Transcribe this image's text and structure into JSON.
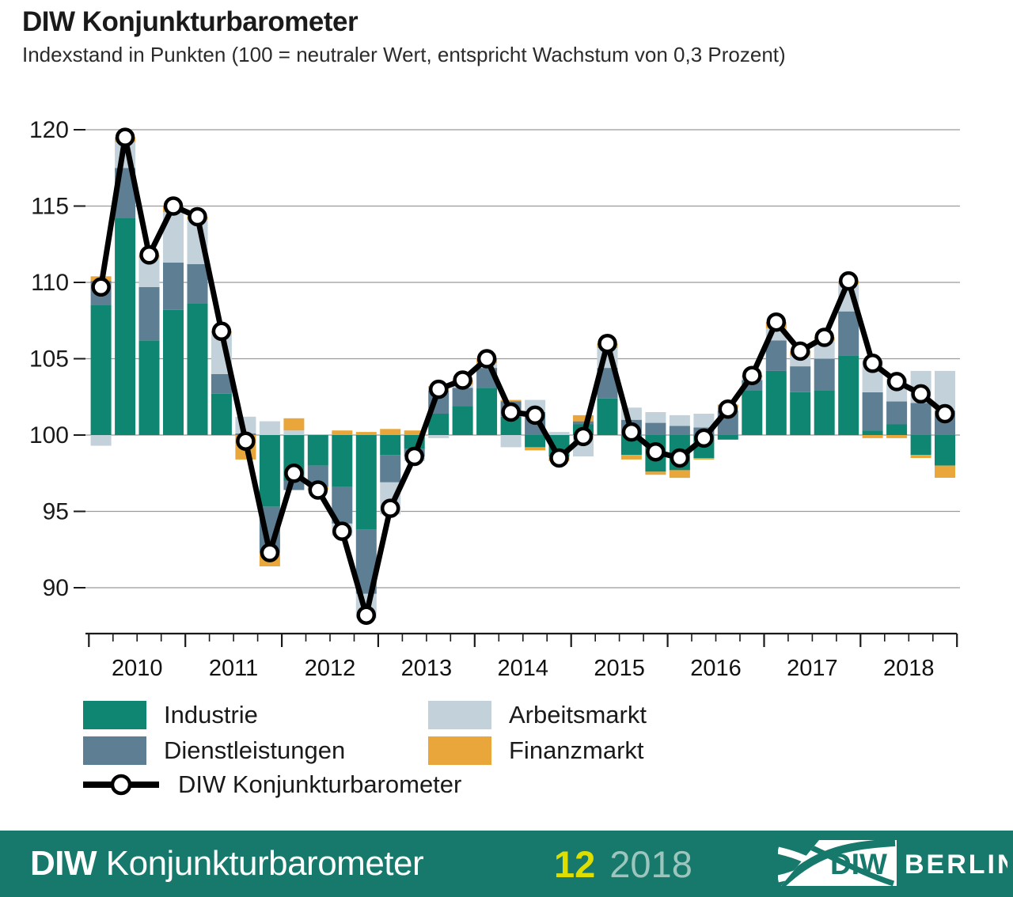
{
  "chart_data": {
    "type": "bar",
    "subtype": "diverging-stacked-bar-with-line",
    "title": "DIW Konjunkturbarometer",
    "subtitle": "Indexstand in Punkten (100 = neutraler Wert, entspricht Wachstum von 0,3 Prozent)",
    "baseline": 100,
    "ylim": [
      87,
      121
    ],
    "yticks": [
      90,
      95,
      100,
      105,
      110,
      115,
      120
    ],
    "grid": "horizontal",
    "legend_position": "bottom-left",
    "years": [
      "2010",
      "2011",
      "2012",
      "2013",
      "2014",
      "2015",
      "2016",
      "2017",
      "2018"
    ],
    "categories": [
      "2010 Q1",
      "2010 Q2",
      "2010 Q3",
      "2010 Q4",
      "2011 Q1",
      "2011 Q2",
      "2011 Q3",
      "2011 Q4",
      "2012 Q1",
      "2012 Q2",
      "2012 Q3",
      "2012 Q4",
      "2013 Q1",
      "2013 Q2",
      "2013 Q3",
      "2013 Q4",
      "2014 Q1",
      "2014 Q2",
      "2014 Q3",
      "2014 Q4",
      "2015 Q1",
      "2015 Q2",
      "2015 Q3",
      "2015 Q4",
      "2016 Q1",
      "2016 Q2",
      "2016 Q3",
      "2016 Q4",
      "2017 Q1",
      "2017 Q2",
      "2017 Q3",
      "2017 Q4",
      "2018 Q1",
      "2018 Q2",
      "2018 Q3",
      "2018 Q4"
    ],
    "series": [
      {
        "name": "Industrie",
        "color": "#0F8671",
        "values": [
          8.5,
          14.2,
          6.2,
          8.2,
          8.6,
          2.7,
          0.0,
          -4.7,
          -3.0,
          -2.0,
          -3.4,
          -6.2,
          -1.3,
          -0.9,
          1.4,
          1.9,
          3.1,
          1.2,
          -0.8,
          -1.4,
          0.7,
          2.4,
          -1.3,
          -2.4,
          -2.3,
          -1.5,
          -0.3,
          2.9,
          4.2,
          2.8,
          2.9,
          5.2,
          0.3,
          0.7,
          -1.3,
          -2.0
        ]
      },
      {
        "name": "Dienstleistungen",
        "color": "#5E7E93",
        "values": [
          1.6,
          3.3,
          3.5,
          3.1,
          2.6,
          1.3,
          0.1,
          -3.0,
          -0.6,
          -1.4,
          -2.4,
          -4.2,
          -1.8,
          -0.5,
          1.5,
          1.2,
          1.3,
          1.0,
          1.5,
          0.0,
          0.2,
          2.0,
          1.0,
          0.8,
          0.6,
          0.5,
          1.6,
          0.7,
          2.0,
          1.7,
          2.1,
          2.9,
          2.5,
          1.5,
          2.1,
          1.6
        ]
      },
      {
        "name": "Arbeitsmarkt",
        "color": "#C3D1DA",
        "values": [
          -0.7,
          1.7,
          1.9,
          3.3,
          2.9,
          2.7,
          1.1,
          0.9,
          0.3,
          0.0,
          -0.8,
          -1.6,
          -2.1,
          -0.3,
          -0.2,
          0.2,
          0.3,
          -0.8,
          0.8,
          0.2,
          -1.4,
          1.3,
          0.8,
          0.7,
          0.7,
          0.9,
          0.2,
          0.2,
          0.8,
          0.7,
          1.2,
          1.8,
          2.1,
          1.5,
          2.1,
          2.6
        ]
      },
      {
        "name": "Finanzmarkt",
        "color": "#E9A73B",
        "values": [
          0.3,
          0.3,
          0.2,
          0.4,
          0.2,
          0.1,
          -1.6,
          -0.9,
          0.8,
          -0.2,
          0.3,
          0.2,
          0.4,
          0.3,
          0.3,
          0.3,
          0.3,
          0.1,
          -0.2,
          -0.3,
          0.4,
          0.3,
          -0.3,
          -0.2,
          -0.5,
          -0.1,
          0.2,
          0.1,
          0.4,
          0.3,
          0.2,
          0.2,
          -0.2,
          -0.2,
          -0.2,
          -0.8
        ]
      }
    ],
    "line": {
      "name": "DIW Konjunkturbarometer",
      "color": "#000000",
      "marker": "open-circle",
      "values": [
        109.7,
        119.5,
        111.8,
        115.0,
        114.3,
        106.8,
        99.6,
        92.3,
        97.5,
        96.4,
        93.7,
        88.2,
        95.2,
        98.6,
        103.0,
        103.6,
        105.0,
        101.5,
        101.3,
        98.5,
        99.9,
        106.0,
        100.2,
        98.9,
        98.5,
        99.8,
        101.7,
        103.9,
        107.4,
        105.5,
        106.4,
        110.1,
        104.7,
        103.5,
        102.7,
        101.4
      ]
    }
  },
  "footer": {
    "brand_bold": "DIW",
    "brand_rest": " Konjunkturbarometer",
    "issue": "12",
    "year": "2018",
    "logo": {
      "diw": "DIW",
      "berlin": "BERLIN"
    }
  }
}
